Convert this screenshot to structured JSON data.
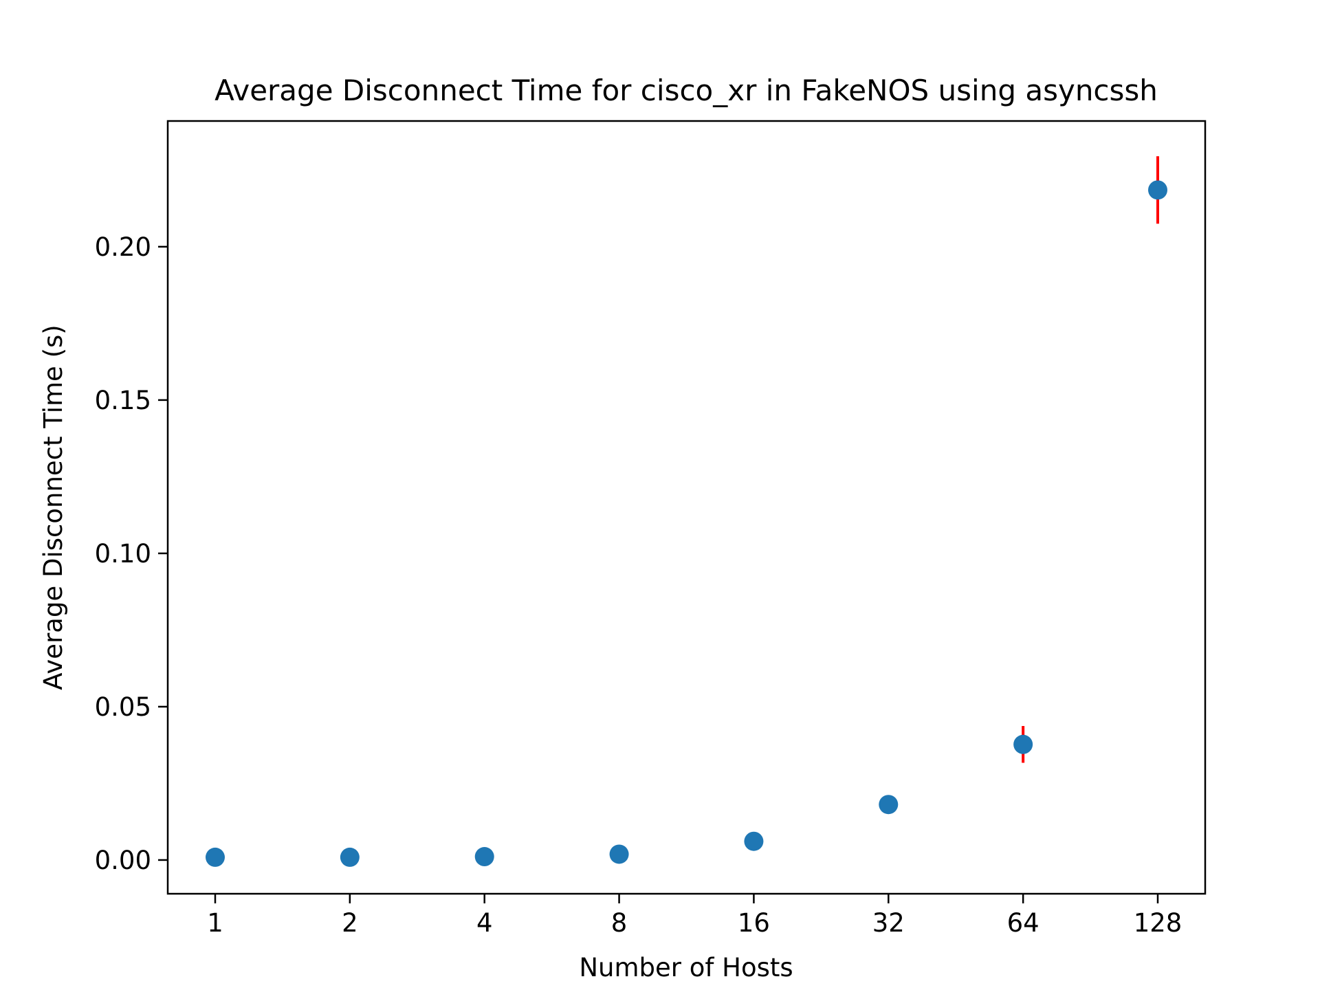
{
  "chart_data": {
    "type": "scatter",
    "title": "Average Disconnect Time for cisco_xr in FakeNOS using asyncssh",
    "xlabel": "Number of Hosts",
    "ylabel": "Average Disconnect Time (s)",
    "x_scale": "log2",
    "x_ticks": [
      "1",
      "2",
      "4",
      "8",
      "16",
      "32",
      "64",
      "128"
    ],
    "y_ticks": [
      "0.00",
      "0.05",
      "0.10",
      "0.15",
      "0.20"
    ],
    "ylim": [
      -0.011,
      0.241
    ],
    "grid": false,
    "legend": "none",
    "series": [
      {
        "x": [
          1,
          2,
          4,
          8,
          16,
          32,
          64,
          128
        ],
        "y": [
          0.0009,
          0.0009,
          0.0011,
          0.0019,
          0.0061,
          0.0181,
          0.0377,
          0.2185
        ],
        "error": [
          0.0,
          0.0,
          0.0,
          0.0,
          0.0,
          0.0,
          0.006,
          0.011
        ]
      }
    ],
    "colors": {
      "marker": "#1f77b4",
      "errorbar": "#ff0000",
      "axes": "#000000"
    }
  }
}
